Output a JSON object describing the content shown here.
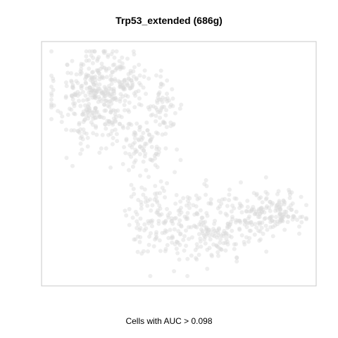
{
  "chart_data": {
    "type": "scatter",
    "title": "Trp53_extended (686g)",
    "xlabel": "Cells with AUC > 0.098",
    "ylabel": "",
    "grid": false,
    "axes_ticks": false,
    "point_color": "#d9d9d9",
    "point_opacity": 0.45,
    "frame_color": "#c8c8c8",
    "xlim": [
      0,
      1
    ],
    "ylim": [
      0,
      1
    ],
    "clusters": [
      {
        "cx": 0.17,
        "cy": 0.8,
        "sx": 0.075,
        "sy": 0.12,
        "n": 320
      },
      {
        "cx": 0.27,
        "cy": 0.86,
        "sx": 0.06,
        "sy": 0.06,
        "n": 90
      },
      {
        "cx": 0.43,
        "cy": 0.76,
        "sx": 0.045,
        "sy": 0.07,
        "n": 70
      },
      {
        "cx": 0.36,
        "cy": 0.57,
        "sx": 0.05,
        "sy": 0.06,
        "n": 80
      },
      {
        "cx": 0.4,
        "cy": 0.26,
        "sx": 0.06,
        "sy": 0.08,
        "n": 110
      },
      {
        "cx": 0.62,
        "cy": 0.22,
        "sx": 0.09,
        "sy": 0.08,
        "n": 200
      },
      {
        "cx": 0.82,
        "cy": 0.27,
        "sx": 0.06,
        "sy": 0.06,
        "n": 110
      },
      {
        "cx": 0.91,
        "cy": 0.28,
        "sx": 0.035,
        "sy": 0.04,
        "n": 60
      }
    ]
  }
}
